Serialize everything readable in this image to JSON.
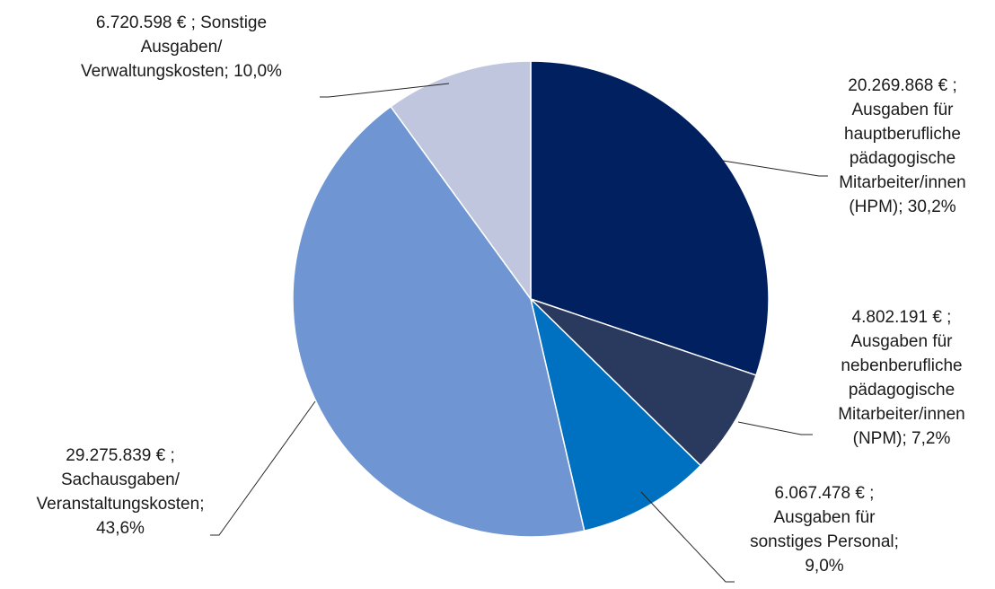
{
  "chart_data": {
    "type": "pie",
    "title": "",
    "start_angle_deg": 0,
    "direction": "clockwise",
    "slices": [
      {
        "key": "hpm",
        "value": 20269868,
        "percent": 30.2,
        "color": "#002060",
        "lines": [
          "20.269.868 € ;",
          "Ausgaben für",
          "hauptberufliche",
          "pädagogische",
          "Mitarbeiter/innen",
          "(HPM); 30,2%"
        ]
      },
      {
        "key": "npm",
        "value": 4802191,
        "percent": 7.2,
        "color": "#2a3a5f",
        "lines": [
          "4.802.191 € ;",
          "Ausgaben für",
          "nebenberufliche",
          "pädagogische",
          "Mitarbeiter/innen",
          "(NPM); 7,2%"
        ]
      },
      {
        "key": "sonst_personal",
        "value": 6067478,
        "percent": 9.0,
        "color": "#0070c0",
        "lines": [
          "6.067.478 € ;",
          "Ausgaben für",
          "sonstiges Personal;",
          "9,0%"
        ]
      },
      {
        "key": "sach",
        "value": 29275839,
        "percent": 43.6,
        "color": "#6f96d2",
        "lines": [
          "29.275.839 € ;",
          "Sachausgaben/",
          "Veranstaltungskosten;",
          "43,6%"
        ]
      },
      {
        "key": "verw",
        "value": 6720598,
        "percent": 10.0,
        "color": "#c0c6de",
        "lines": [
          "6.720.598 € ; Sonstige",
          "Ausgaben/",
          "Verwaltungskosten; 10,0%"
        ]
      }
    ]
  }
}
